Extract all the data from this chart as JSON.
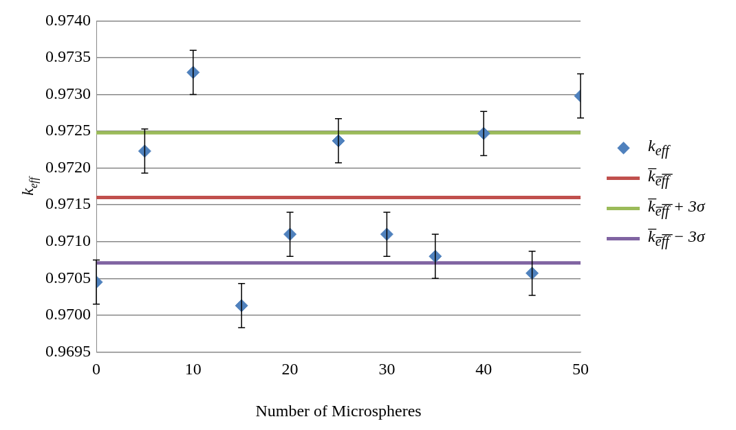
{
  "chart_data": {
    "type": "scatter",
    "xlabel": "Number of Microspheres",
    "ylabel": "k$_{eff}$",
    "x": [
      0,
      5,
      10,
      15,
      20,
      25,
      30,
      35,
      40,
      45,
      50
    ],
    "series": [
      {
        "name": "k$_{eff}$",
        "color": "#4f81bd",
        "values": [
          0.97045,
          0.97223,
          0.9733,
          0.97013,
          0.9711,
          0.97237,
          0.9711,
          0.9708,
          0.97247,
          0.97057,
          0.97298
        ],
        "errors": [
          0.0003,
          0.0003,
          0.0003,
          0.0003,
          0.0003,
          0.0003,
          0.0003,
          0.0003,
          0.0003,
          0.0003,
          0.0003
        ]
      }
    ],
    "marker": "diamond",
    "ref_lines": [
      {
        "axis": "y",
        "value": 0.9716,
        "label": "k̅$_{e̅f̅f̅}$",
        "color": "#c0504d"
      },
      {
        "axis": "y",
        "value": 0.97248,
        "label": "k̅$_{e̅f̅f̅}$ + 3σ",
        "color": "#9bbb59"
      },
      {
        "axis": "y",
        "value": 0.97071,
        "label": "k̅$_{e̅f̅f̅}$ − 3σ",
        "color": "#8064a2"
      }
    ],
    "xlim": [
      0,
      50
    ],
    "xticks": [
      0,
      10,
      20,
      30,
      40,
      50
    ],
    "ylim": [
      0.9695,
      0.974
    ],
    "yticks": [
      0.9695,
      {
        "value": 0.97,
        "label": "0.9700"
      },
      0.9705,
      {
        "value": 0.971,
        "label": "0.9710"
      },
      0.9715,
      {
        "value": 0.972,
        "label": "0.9720"
      },
      0.9725,
      {
        "value": 0.973,
        "label": "0.9730"
      },
      0.9735,
      {
        "value": 0.974,
        "label": "0.9740"
      }
    ],
    "grid": "y",
    "legend": "right"
  }
}
